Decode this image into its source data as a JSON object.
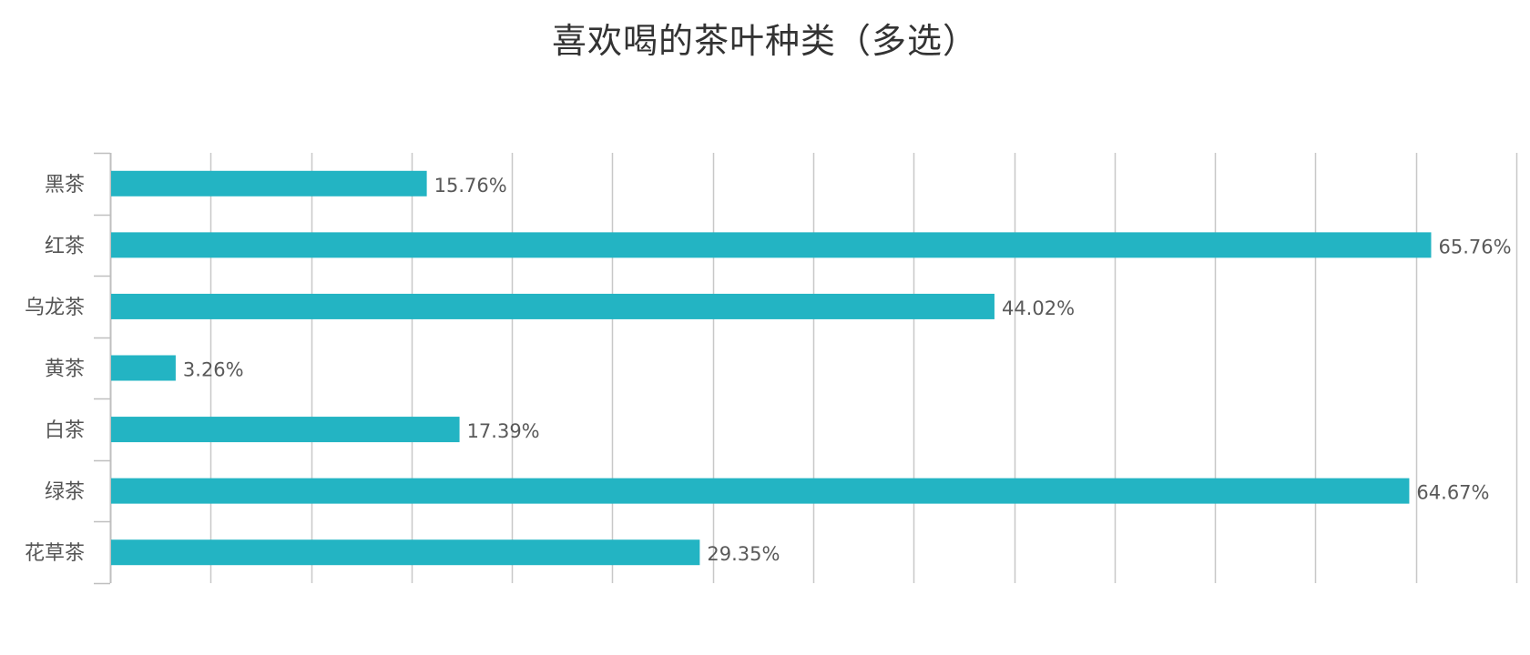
{
  "chart_data": {
    "type": "bar",
    "orientation": "horizontal",
    "title": "喜欢喝的茶叶种类（多选）",
    "categories": [
      "黑茶",
      "红茶",
      "乌龙茶",
      "黄茶",
      "白茶",
      "绿茶",
      "花草茶"
    ],
    "values": [
      15.76,
      65.76,
      44.02,
      3.26,
      17.39,
      64.67,
      29.35
    ],
    "value_labels": [
      "15.76%",
      "65.76%",
      "44.02%",
      "3.26%",
      "17.39%",
      "64.67%",
      "29.35%"
    ],
    "xlim": [
      0,
      70
    ],
    "x_grid_step": 5,
    "grid": true,
    "bar_color": "#23b4c3",
    "xlabel": "",
    "ylabel": ""
  }
}
